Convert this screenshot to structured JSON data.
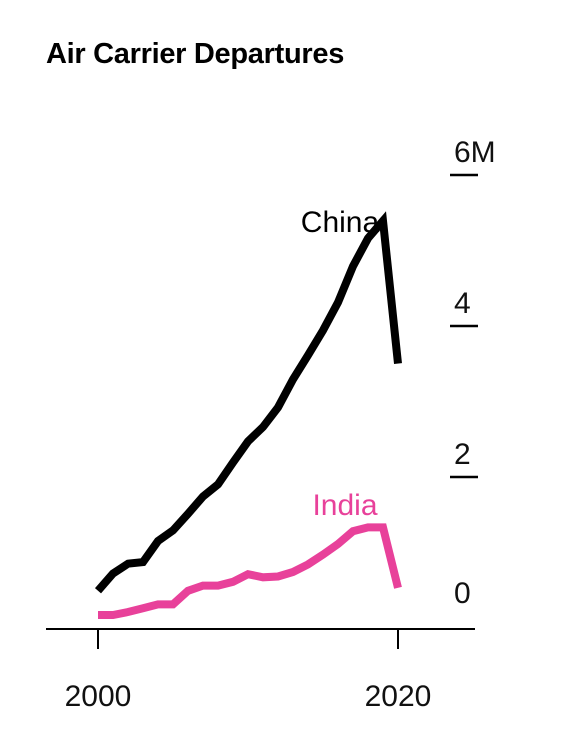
{
  "chart_data": {
    "type": "line",
    "title": "Air Carrier Departures",
    "xlabel": "",
    "ylabel": "",
    "xlim": [
      1999.6,
      2021.4
    ],
    "ylim": [
      0,
      6
    ],
    "x_ticks": [
      {
        "value": 2000,
        "label": "2000"
      },
      {
        "value": 2020,
        "label": "2020"
      }
    ],
    "y_ticks": [
      {
        "value": 0,
        "label": "0"
      },
      {
        "value": 2,
        "label": "2"
      },
      {
        "value": 4,
        "label": "4"
      },
      {
        "value": 6,
        "label": "6M"
      }
    ],
    "x": [
      2000,
      2001,
      2002,
      2003,
      2004,
      2005,
      2006,
      2007,
      2008,
      2009,
      2010,
      2011,
      2012,
      2013,
      2014,
      2015,
      2016,
      2017,
      2018,
      2019,
      2020
    ],
    "series": [
      {
        "name": "China",
        "color": "#000000",
        "values": [
          0.32,
          0.55,
          0.68,
          0.7,
          0.98,
          1.12,
          1.34,
          1.57,
          1.73,
          2.02,
          2.3,
          2.49,
          2.75,
          3.12,
          3.44,
          3.77,
          4.14,
          4.62,
          4.99,
          5.22,
          3.33
        ]
      },
      {
        "name": "India",
        "color": "#e8419a",
        "values": [
          0.0,
          0.0,
          0.04,
          0.09,
          0.14,
          0.14,
          0.32,
          0.39,
          0.39,
          0.44,
          0.54,
          0.5,
          0.51,
          0.57,
          0.67,
          0.8,
          0.94,
          1.11,
          1.16,
          1.16,
          0.36
        ]
      }
    ],
    "grid": false,
    "legend": "direct-labels"
  }
}
